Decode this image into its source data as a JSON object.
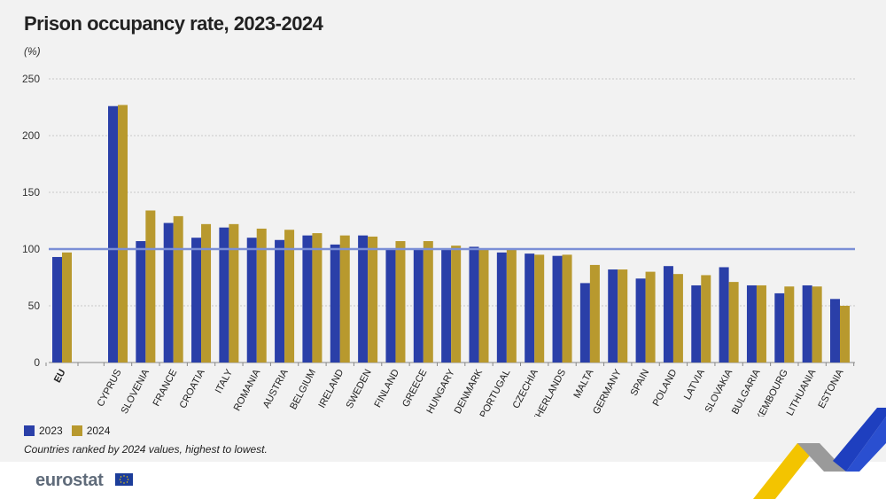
{
  "title": "Prison occupancy rate, 2023-2024",
  "unit": "(%)",
  "note": "Countries ranked by 2024 values, highest to lowest.",
  "logo": "eurostat",
  "colors": {
    "s2023": "#2a3fa8",
    "s2024": "#b8992e",
    "refline": "#7b8fd6",
    "grid": "#c8c8c8"
  },
  "legend": [
    {
      "label": "2023",
      "color": "#2a3fa8"
    },
    {
      "label": "2024",
      "color": "#b8992e"
    }
  ],
  "chart_data": {
    "type": "bar",
    "categories": [
      "EU",
      "CYPRUS",
      "SLOVENIA",
      "FRANCE",
      "CROATIA",
      "ITALY",
      "ROMANIA",
      "AUSTRIA",
      "BELGIUM",
      "IRELAND",
      "SWEDEN",
      "FINLAND",
      "GREECE",
      "HUNGARY",
      "DENMARK",
      "PORTUGAL",
      "CZECHIA",
      "NETHERLANDS",
      "MALTA",
      "GERMANY",
      "SPAIN",
      "POLAND",
      "LATVIA",
      "SLOVAKIA",
      "BULGARIA",
      "LUXEMBOURG",
      "LITHUANIA",
      "ESTONIA"
    ],
    "series": [
      {
        "name": "2023",
        "values": [
          93,
          226,
          107,
          123,
          110,
          119,
          110,
          108,
          112,
          104,
          112,
          100,
          100,
          100,
          102,
          97,
          96,
          94,
          70,
          82,
          74,
          85,
          68,
          84,
          68,
          61,
          68,
          56
        ]
      },
      {
        "name": "2024",
        "values": [
          97,
          227,
          134,
          129,
          122,
          122,
          118,
          117,
          114,
          112,
          111,
          107,
          107,
          103,
          100,
          100,
          95,
          95,
          86,
          82,
          80,
          78,
          77,
          71,
          68,
          67,
          67,
          50
        ]
      }
    ],
    "yticks": [
      0,
      50,
      100,
      150,
      200,
      250
    ],
    "ylim": [
      0,
      250
    ],
    "reference_line": 100,
    "grid": true,
    "legend_position": "bottom-left"
  }
}
